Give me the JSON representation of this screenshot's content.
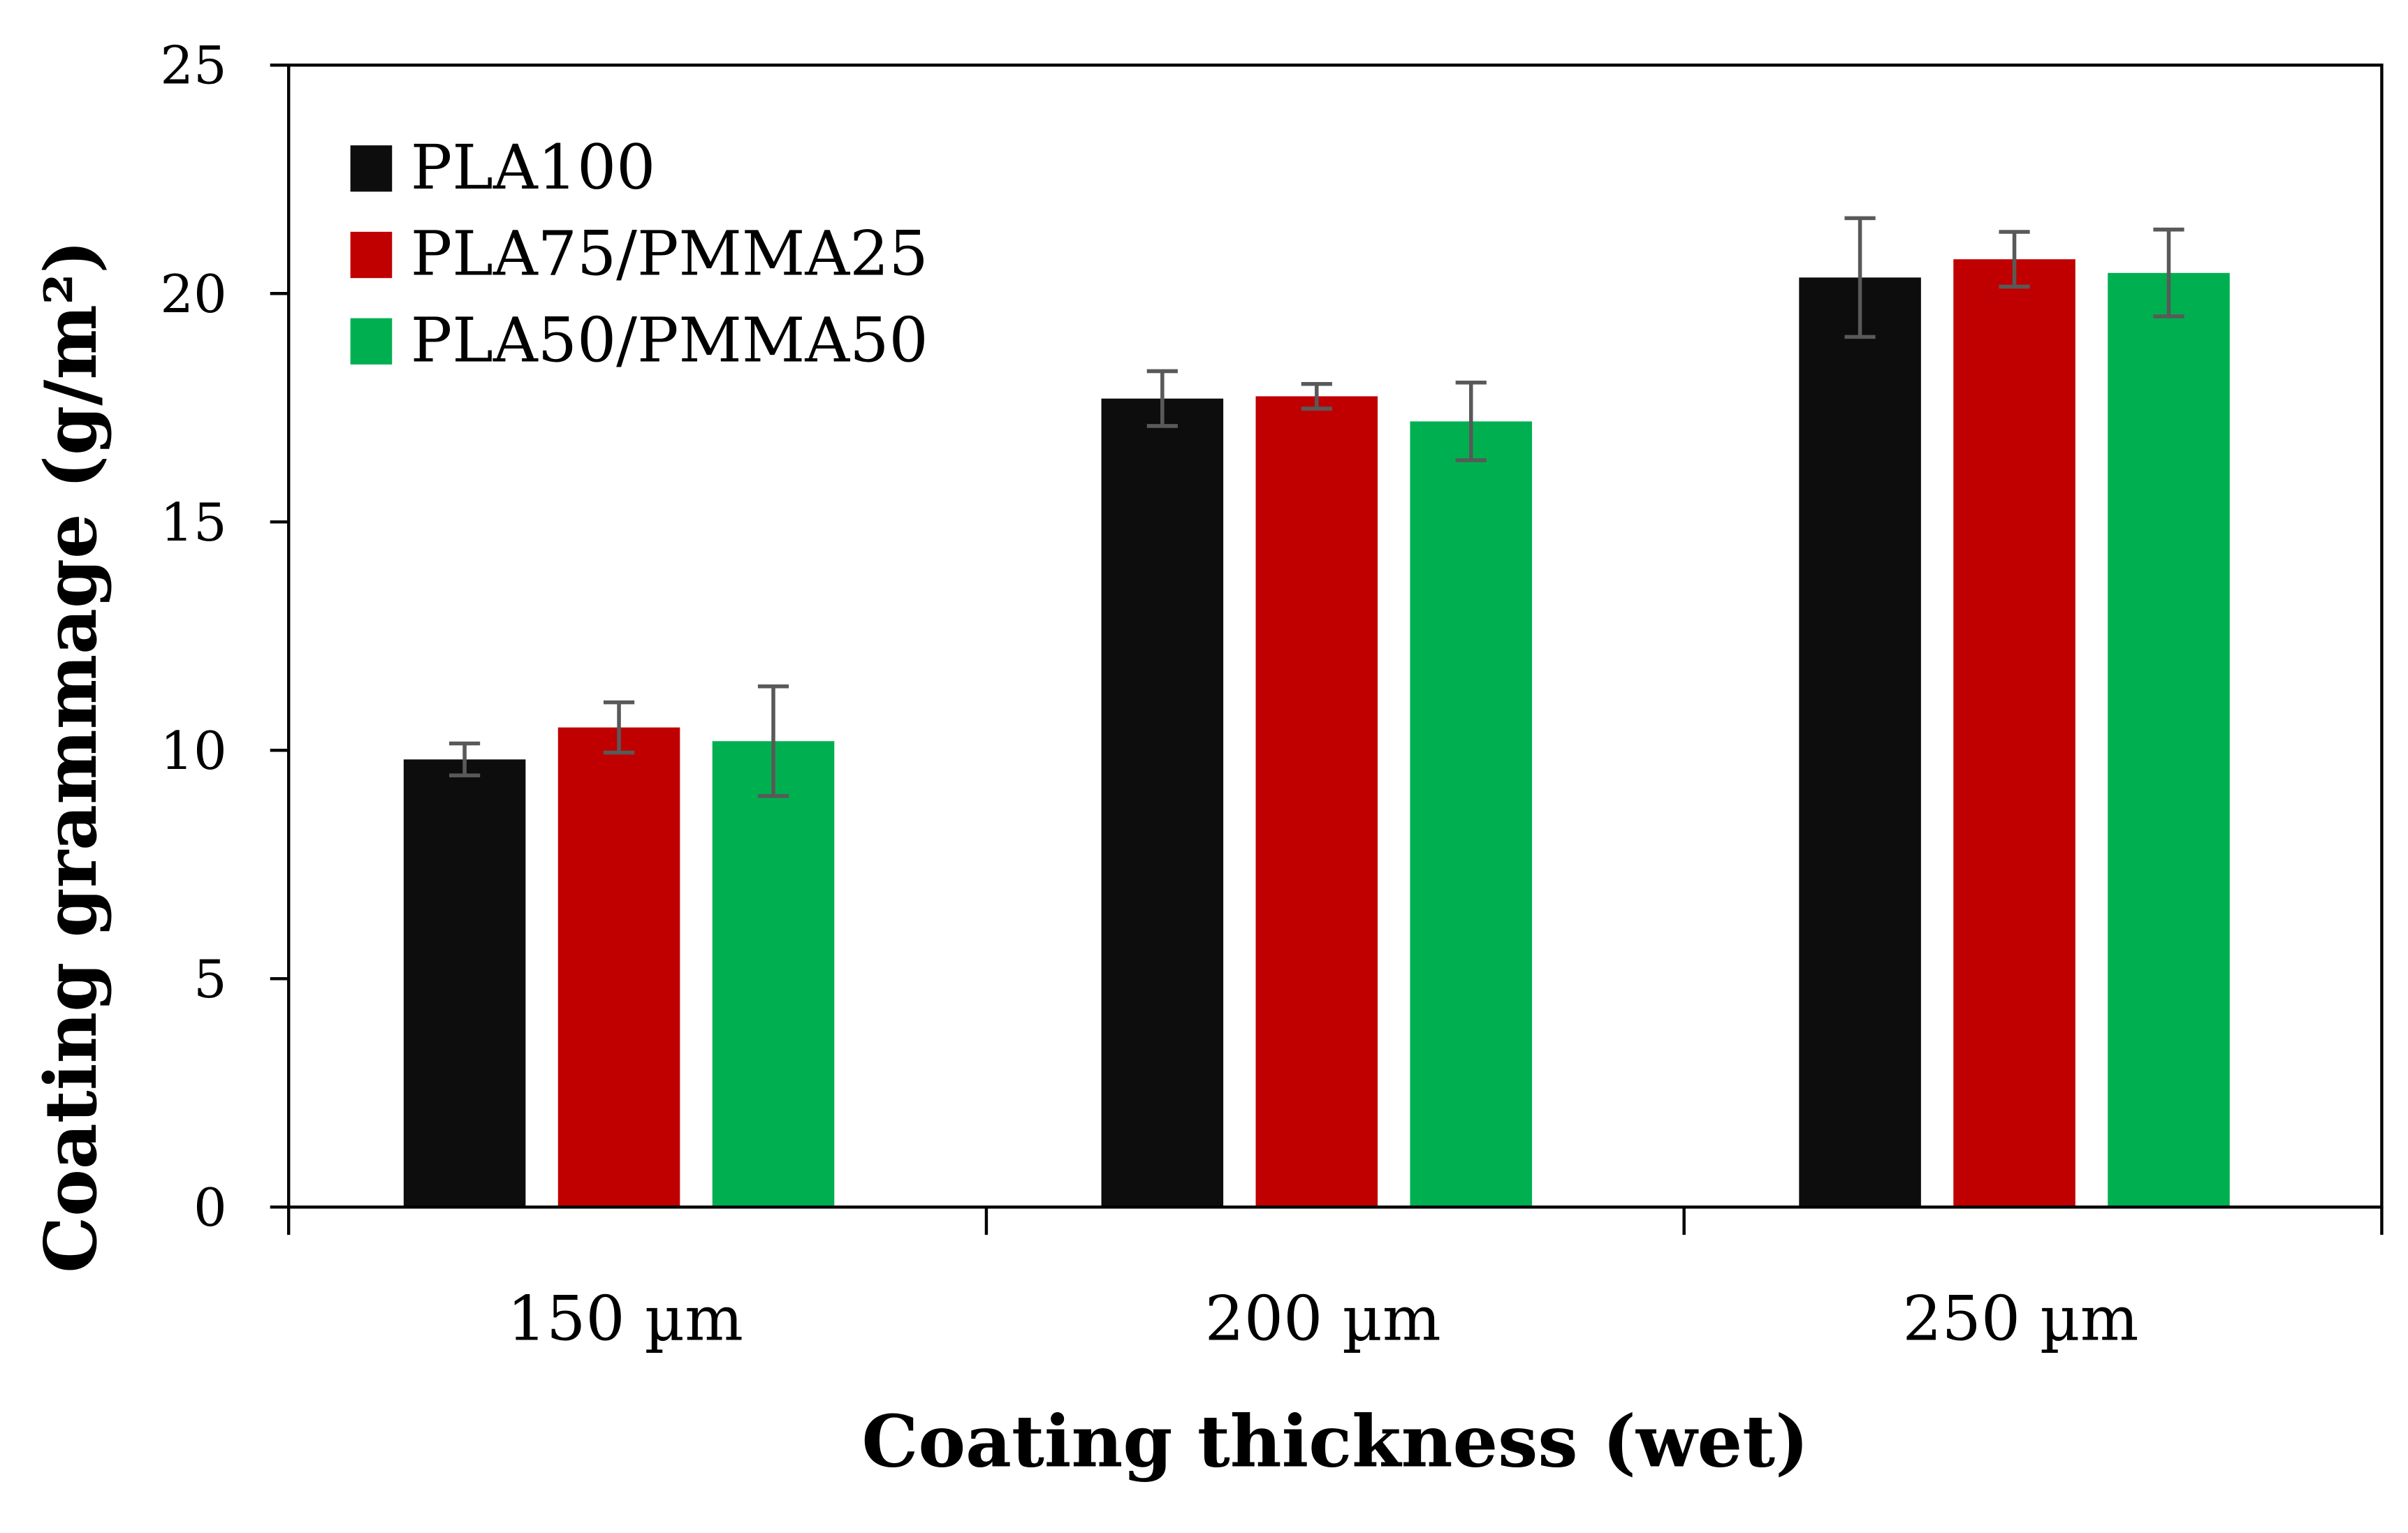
{
  "chart_data": {
    "type": "bar",
    "title": "",
    "xlabel": "Coating thickness (wet)",
    "ylabel": "Coating grammage (g/m²)",
    "ylim": [
      0,
      25
    ],
    "yticks": [
      0,
      5,
      10,
      15,
      20,
      25
    ],
    "ytick_labels": [
      "0",
      "5",
      "10",
      "15",
      "20",
      "25"
    ],
    "categories": [
      "150 µm",
      "200 µm",
      "250 µm"
    ],
    "grid": false,
    "legend_position": "top-left",
    "series": [
      {
        "name": "PLA100",
        "color": "#0d0d0d",
        "values": [
          9.8,
          17.7,
          20.35
        ],
        "errors": [
          0.35,
          0.6,
          1.3
        ]
      },
      {
        "name": "PLA75/PMMA25",
        "color": "#c00000",
        "values": [
          10.5,
          17.75,
          20.75
        ],
        "errors": [
          0.55,
          0.27,
          0.6
        ]
      },
      {
        "name": "PLA50/PMMA50",
        "color": "#00b050",
        "values": [
          10.2,
          17.2,
          20.45
        ],
        "errors": [
          1.2,
          0.85,
          0.95
        ]
      }
    ],
    "error_bar_color": "#595959"
  }
}
